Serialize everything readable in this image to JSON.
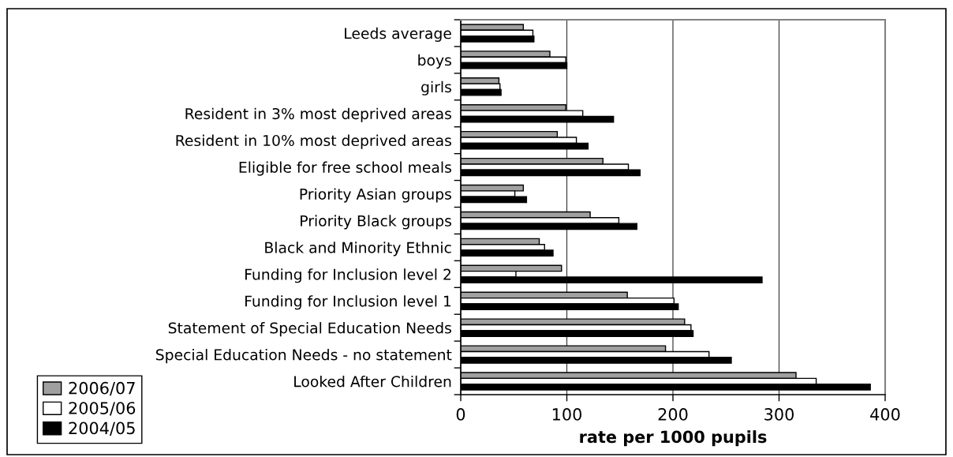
{
  "chart_data": {
    "type": "bar",
    "orientation": "horizontal",
    "xlabel": "rate per 1000 pupils",
    "categories": [
      "Leeds average",
      "boys",
      "girls",
      "Resident in 3% most deprived areas",
      "Resident in 10% most deprived areas",
      "Eligible for free school meals",
      "Priority Asian groups",
      "Priority Black groups",
      "Black and Minority Ethnic",
      "Funding for Inclusion level 2",
      "Funding for Inclusion level 1",
      "Statement of Special Education Needs",
      "Special Education Needs - no statement",
      "Looked After Children"
    ],
    "series": [
      {
        "name": "2006/07",
        "color": "#a0a0a0",
        "values": [
          59,
          84,
          36,
          99,
          91,
          134,
          59,
          122,
          74,
          95,
          157,
          211,
          193,
          316
        ]
      },
      {
        "name": "2005/06",
        "color": "#ffffff",
        "values": [
          68,
          99,
          37,
          115,
          109,
          158,
          51,
          149,
          79,
          52,
          201,
          217,
          234,
          335
        ]
      },
      {
        "name": "2004/05",
        "color": "#000000",
        "values": [
          69,
          100,
          38,
          144,
          120,
          169,
          62,
          166,
          87,
          284,
          205,
          219,
          255,
          386
        ]
      }
    ],
    "xlim": [
      0,
      400
    ],
    "xticks": [
      0,
      100,
      200,
      300,
      400
    ],
    "grid": "x",
    "legend": "bottom left"
  }
}
